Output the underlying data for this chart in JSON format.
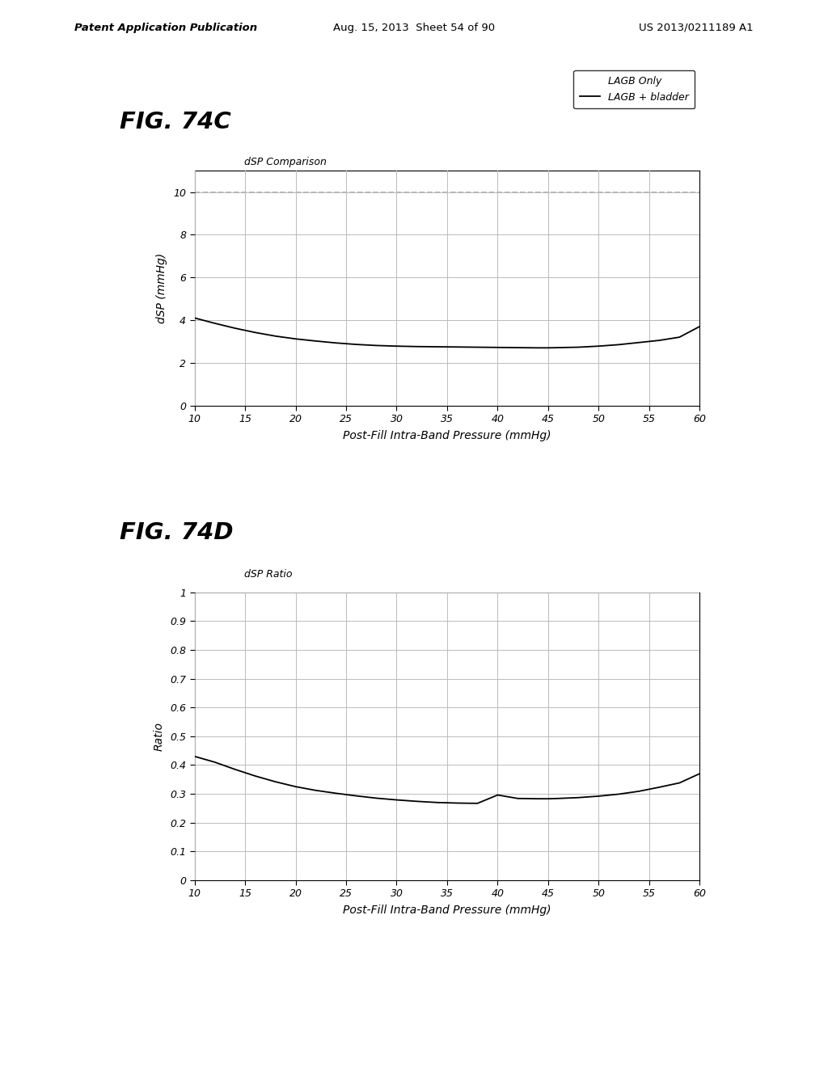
{
  "header_left": "Patent Application Publication",
  "header_center": "Aug. 15, 2013  Sheet 54 of 90",
  "header_right": "US 2013/0211189 A1",
  "fig_74c": {
    "fig_label": "FIG. 74C",
    "chart_title": "dSP Comparison",
    "xlabel": "Post-Fill Intra-Band Pressure (mmHg)",
    "ylabel": "dSP (mmHg)",
    "xlim": [
      10,
      60
    ],
    "ylim": [
      0,
      11
    ],
    "yticks": [
      0,
      2,
      4,
      6,
      8,
      10
    ],
    "ytick_labels": [
      "0",
      "2",
      "4",
      "6",
      "8",
      "10"
    ],
    "xticks": [
      10,
      15,
      20,
      25,
      30,
      35,
      40,
      45,
      50,
      55,
      60
    ],
    "dashed_y": 10,
    "legend_entries": [
      "LAGB Only",
      "LAGB + bladder"
    ],
    "curve_x": [
      10,
      12,
      14,
      16,
      18,
      20,
      22,
      24,
      26,
      28,
      30,
      32,
      34,
      36,
      38,
      40,
      42,
      44,
      45,
      46,
      48,
      50,
      52,
      54,
      56,
      58,
      60
    ],
    "curve_y": [
      4.1,
      3.85,
      3.62,
      3.42,
      3.25,
      3.12,
      3.02,
      2.93,
      2.86,
      2.81,
      2.78,
      2.76,
      2.75,
      2.74,
      2.73,
      2.72,
      2.71,
      2.7,
      2.7,
      2.71,
      2.73,
      2.78,
      2.85,
      2.95,
      3.05,
      3.2,
      3.7
    ]
  },
  "fig_74d": {
    "fig_label": "FIG. 74D",
    "chart_title": "dSP Ratio",
    "xlabel": "Post-Fill Intra-Band Pressure (mmHg)",
    "ylabel": "Ratio",
    "xlim": [
      10,
      60
    ],
    "ylim": [
      0,
      1
    ],
    "yticks": [
      0,
      0.1,
      0.2,
      0.3,
      0.4,
      0.5,
      0.6,
      0.7,
      0.8,
      0.9,
      1.0
    ],
    "ytick_labels": [
      "0",
      "0.1",
      "0.2",
      "0.3",
      "0.4",
      "0.5",
      "0.6",
      "0.7",
      "0.8",
      "0.9",
      "1"
    ],
    "xticks": [
      10,
      15,
      20,
      25,
      30,
      35,
      40,
      45,
      50,
      55,
      60
    ],
    "curve_x": [
      10,
      12,
      14,
      16,
      18,
      20,
      22,
      24,
      26,
      28,
      30,
      32,
      34,
      36,
      38,
      40,
      42,
      44,
      45,
      46,
      48,
      50,
      52,
      54,
      56,
      58,
      60
    ],
    "curve_y": [
      0.43,
      0.41,
      0.385,
      0.362,
      0.342,
      0.325,
      0.312,
      0.302,
      0.293,
      0.285,
      0.279,
      0.274,
      0.27,
      0.268,
      0.267,
      0.296,
      0.284,
      0.283,
      0.283,
      0.284,
      0.287,
      0.292,
      0.299,
      0.309,
      0.323,
      0.338,
      0.37
    ]
  },
  "background_color": "#ffffff",
  "line_color": "#000000",
  "grid_color": "#bbbbbb",
  "dashed_color": "#aaaaaa"
}
